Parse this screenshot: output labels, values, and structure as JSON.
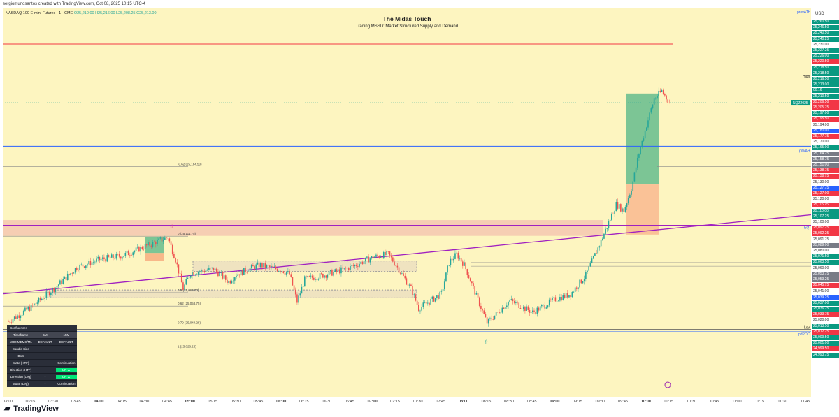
{
  "attribution": "sergiomunosantos created with TradingView.com, Oct 08, 2025 10:15 UTC-4",
  "symbol": {
    "name": "NASDAQ 100 E-mini Futures · 1 · CME",
    "ohlc": "O25,210.00 H25,216.00 L25,208.25 C25,213.00"
  },
  "indicator": {
    "title": "The Midas Touch",
    "subtitle": "Trading MSSD: Market Structured Supply and Demand"
  },
  "currency": "USD",
  "brand": "TradingView",
  "colors": {
    "background": "#fdf5c0",
    "up": "#26a69a",
    "down": "#ef5350",
    "trendline": "#a020c0",
    "level_blue": "#2962ff",
    "level_red": "#f23645"
  },
  "chart_data": {
    "type": "candlestick",
    "x_ticks": [
      "03:00",
      "03:15",
      "03:30",
      "03:45",
      "04:00",
      "04:15",
      "04:30",
      "04:45",
      "05:00",
      "05:15",
      "05:30",
      "05:45",
      "06:00",
      "06:15",
      "06:30",
      "06:45",
      "07:00",
      "07:15",
      "07:30",
      "07:45",
      "08:00",
      "08:15",
      "08:30",
      "08:45",
      "09:00",
      "09:15",
      "09:30",
      "09:45",
      "10:00",
      "10:15",
      "10:30",
      "10:45",
      "11:00",
      "11:15",
      "11:30",
      "11:45"
    ],
    "bold_ticks": [
      "04:00",
      "05:00",
      "06:00",
      "07:00",
      "08:00",
      "09:00",
      "10:00"
    ],
    "ylim": [
      24990,
      25275
    ],
    "price_path": [
      [
        "03:00",
        25047
      ],
      [
        "03:15",
        25058
      ],
      [
        "03:30",
        25072
      ],
      [
        "03:45",
        25088
      ],
      [
        "04:00",
        25094
      ],
      [
        "04:15",
        25097
      ],
      [
        "04:30",
        25104
      ],
      [
        "04:45",
        25111
      ],
      [
        "04:50",
        25094
      ],
      [
        "04:55",
        25072
      ],
      [
        "05:00",
        25084
      ],
      [
        "05:15",
        25087
      ],
      [
        "05:25",
        25077
      ],
      [
        "05:30",
        25083
      ],
      [
        "05:45",
        25090
      ],
      [
        "06:00",
        25086
      ],
      [
        "06:05",
        25083
      ],
      [
        "06:10",
        25062
      ],
      [
        "06:15",
        25079
      ],
      [
        "06:30",
        25083
      ],
      [
        "06:45",
        25088
      ],
      [
        "07:00",
        25096
      ],
      [
        "07:10",
        25098
      ],
      [
        "07:15",
        25090
      ],
      [
        "07:25",
        25072
      ],
      [
        "07:30",
        25057
      ],
      [
        "07:45",
        25068
      ],
      [
        "07:50",
        25092
      ],
      [
        "07:55",
        25098
      ],
      [
        "08:00",
        25090
      ],
      [
        "08:15",
        25046
      ],
      [
        "08:30",
        25063
      ],
      [
        "08:45",
        25054
      ],
      [
        "09:00",
        25064
      ],
      [
        "09:10",
        25068
      ],
      [
        "09:20",
        25082
      ],
      [
        "09:30",
        25108
      ],
      [
        "09:40",
        25136
      ],
      [
        "09:45",
        25131
      ],
      [
        "09:50",
        25148
      ],
      [
        "09:55",
        25175
      ],
      [
        "10:00",
        25196
      ],
      [
        "10:05",
        25216
      ],
      [
        "10:10",
        25222
      ],
      [
        "10:15",
        25213
      ]
    ],
    "levels": [
      {
        "name": "High",
        "price": 25257.5,
        "color": "#f23645",
        "label": "High"
      },
      {
        "name": "prevATH",
        "label": "prevATH"
      },
      {
        "name": "pdVAH",
        "price": 25180,
        "color": "#2962ff",
        "label": "pdVAH"
      },
      {
        "name": "EQ",
        "price": 25120,
        "color": "#a020c0",
        "label": "EQ"
      },
      {
        "name": "pdPOC",
        "price": 25039.25,
        "color": "#2962ff",
        "label": "pdPOC"
      },
      {
        "name": "Low",
        "price": 25041,
        "label": "Low"
      }
    ],
    "fib_levels": [
      {
        "label": "-0.62 (25,164.50)",
        "price": 25164.5
      },
      {
        "label": "0 (25,111.75)",
        "price": 25111.75
      },
      {
        "label": "0.5 (25,069.00)",
        "price": 25069.0
      },
      {
        "label": "0.62 (25,058.75)",
        "price": 25058.75
      },
      {
        "label": "0.79 (25,044.25)",
        "price": 25044.25
      },
      {
        "label": "1 (25,026.25)",
        "price": 25026.25
      }
    ],
    "price_labels": [
      {
        "text": "25,260.50",
        "price": 25260.5,
        "color": "#089981"
      },
      {
        "text": "25,246.50",
        "price": 25246.5,
        "color": "#089981"
      },
      {
        "text": "25,240.50",
        "price": 25240.5,
        "color": "#089981"
      },
      {
        "text": "25,240.25",
        "price": 25234.5,
        "color": "#089981"
      },
      {
        "text": "25,231.00",
        "price": 25229.5,
        "color": "#ffffff"
      },
      {
        "text": "25,227.25",
        "price": 25224.5,
        "color": "#089981"
      },
      {
        "text": "25,226.00",
        "price": 25219.5,
        "color": "#089981"
      },
      {
        "text": "25,220.50",
        "price": 25214.0,
        "color": "#f23645"
      },
      {
        "text": "25,218.50",
        "price": 25209.0,
        "color": "#089981"
      },
      {
        "text": "25,218.50",
        "price": 25204.0,
        "color": "#089981"
      },
      {
        "text": "25,216.50",
        "price": 25198.5,
        "color": "#089981"
      },
      {
        "text": "25,213.00",
        "price": 25193.5,
        "color": "#089981"
      },
      {
        "text": "00:16",
        "price": 25188.5,
        "color": "#089981"
      },
      {
        "text": "25,210.50",
        "price": 25183.0,
        "color": "#089981"
      },
      {
        "text": "25,206.50",
        "price": 25178.0,
        "color": "#f23645"
      },
      {
        "text": "25,205.75",
        "price": 25173.0,
        "color": "#f23645"
      },
      {
        "text": "25,197.00",
        "price": 25167.5,
        "color": "#089981"
      },
      {
        "text": "25,195.50",
        "price": 25162.5,
        "color": "#f23645"
      },
      {
        "text": "25,194.00",
        "price": 25157.5,
        "color": "#ffffff"
      },
      {
        "text": "25,180.00",
        "price": 25151.5,
        "color": "#2962ff"
      },
      {
        "text": "25,177.75",
        "price": 25146.5,
        "color": "#f23645"
      },
      {
        "text": "25,170.00",
        "price": 25140.0,
        "color": "#ffffff"
      },
      {
        "text": "25,165.00",
        "price": 25134.5,
        "color": "#089981"
      },
      {
        "text": "25,164.25",
        "price": 25129.5,
        "color": "#787b86"
      },
      {
        "text": "25,158.75",
        "price": 25124.5,
        "color": "#787b86"
      },
      {
        "text": "25,151.00",
        "price": 25119.0,
        "color": "#787b86"
      },
      {
        "text": "25,138.75",
        "price": 25104.5,
        "color": "#f23645"
      },
      {
        "text": "25,138.75",
        "price": 25099.5,
        "color": "#f23645"
      },
      {
        "text": "25,130.00",
        "price": 25095.0,
        "color": "#ffffff"
      },
      {
        "text": "25,127.75",
        "price": 25090.5,
        "color": "#2962ff"
      },
      {
        "text": "25,127.00",
        "price": 25086.0,
        "color": "#f23645"
      },
      {
        "text": "25,120.00",
        "price": 25081.5,
        "color": "#ffffff"
      },
      {
        "text": "25,115.75",
        "price": 25077.0,
        "color": "#f23645"
      },
      {
        "text": "25,110.00",
        "price": 25070.0,
        "color": "#089981"
      },
      {
        "text": "25,107.25",
        "price": 25065.0,
        "color": "#089981"
      },
      {
        "text": "25,100.00",
        "price": 25058.5,
        "color": "#ffffff"
      },
      {
        "text": "25,097.25",
        "price": 25054.0,
        "color": "#f23645"
      },
      {
        "text": "25,092.25",
        "price": 25049.5,
        "color": "#f23645"
      },
      {
        "text": "25,091.75",
        "price": 25044.0,
        "color": "#ffffff"
      },
      {
        "text": "25,089.00",
        "price": 25039.5,
        "color": "#787b86"
      },
      {
        "text": "25,080.00",
        "price": 25034.0,
        "color": "#ffffff"
      },
      {
        "text": "25,071.50",
        "price": 25025.0,
        "color": "#089981"
      },
      {
        "text": "25,063.50",
        "price": 25017.0,
        "color": "#089981"
      },
      {
        "text": "25,060.00",
        "price": 25011.5,
        "color": "#ffffff"
      },
      {
        "text": "25,053.75",
        "price": 25002.5,
        "color": "#787b86"
      },
      {
        "text": "25,053.25",
        "price": 24998.0,
        "color": "#787b86"
      },
      {
        "text": "25,045.75",
        "price": 24993.5,
        "color": "#f23645"
      }
    ],
    "lower_labels": [
      {
        "text": "25,041.00",
        "color": "#ffffff"
      },
      {
        "text": "25,039.25",
        "color": "#2962ff"
      },
      {
        "text": "25,037.00",
        "color": "#089981"
      },
      {
        "text": "25,036.75",
        "color": "#089981"
      },
      {
        "text": "25,033.75",
        "color": "#f23645"
      },
      {
        "text": "25,020.00",
        "color": "#ffffff"
      },
      {
        "text": "25,013.50",
        "color": "#089981"
      },
      {
        "text": "25,012.25",
        "color": "#f23645"
      },
      {
        "text": "25,009.50",
        "color": "#089981"
      },
      {
        "text": "25,001.00",
        "color": "#089981"
      },
      {
        "text": "24,999.50",
        "color": "#f23645"
      },
      {
        "text": "24,993.75",
        "color": "#089981"
      }
    ],
    "current_tag": "NQZ2025"
  },
  "confluences": {
    "title": "Confluences",
    "header": [
      "Timeframe",
      "5M",
      "15M"
    ],
    "rows": [
      [
        "1000 MEMS/ML",
        "DEFAULT",
        "DEFAULT"
      ],
      [
        "Candle Size",
        "",
        ""
      ],
      [
        "BoS",
        "",
        ""
      ],
      [
        "State (HTF)",
        "-",
        "Continuation"
      ],
      [
        "Direction (HTF)",
        "-",
        "UP ▲"
      ],
      [
        "Direction (Leg)",
        "-",
        "UP ▲"
      ],
      [
        "State (Leg)",
        "-",
        "Continuation"
      ]
    ]
  }
}
